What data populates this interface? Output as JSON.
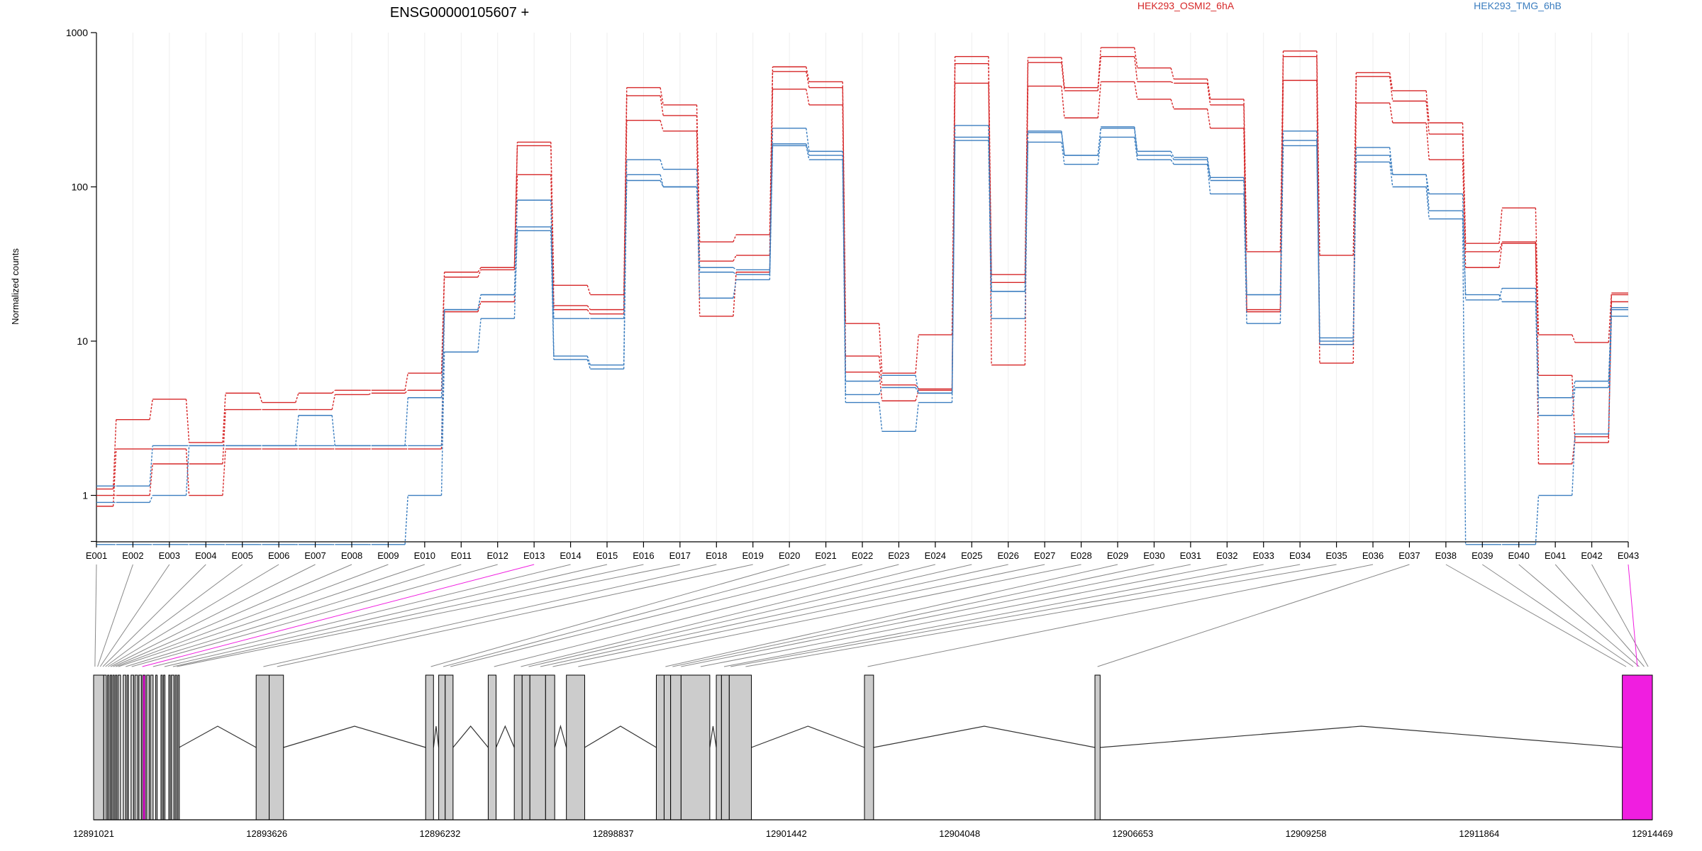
{
  "chart_data": {
    "type": "line",
    "title": "ENSG00000105607 +",
    "ylabel": "Normalized counts",
    "xlabel": "",
    "y_scale": "log",
    "ylim": [
      0.5,
      1000
    ],
    "y_ticks": [
      {
        "value": 1,
        "label": "1"
      },
      {
        "value": 10,
        "label": "10"
      },
      {
        "value": 100,
        "label": "100"
      },
      {
        "value": 1000,
        "label": "1000"
      }
    ],
    "grid": true,
    "legend": "top",
    "categories": [
      "E001",
      "E002",
      "E003",
      "E004",
      "E005",
      "E006",
      "E007",
      "E008",
      "E009",
      "E010",
      "E011",
      "E012",
      "E013",
      "E014",
      "E015",
      "E016",
      "E017",
      "E018",
      "E019",
      "E020",
      "E021",
      "E022",
      "E023",
      "E024",
      "E025",
      "E026",
      "E027",
      "E028",
      "E029",
      "E030",
      "E031",
      "E032",
      "E033",
      "E034",
      "E035",
      "E036",
      "E037",
      "E038",
      "E039",
      "E040",
      "E041",
      "E042",
      "E043"
    ],
    "groups": [
      {
        "name": "HEK293_OSMI2_6hA",
        "color": "#d62728"
      },
      {
        "name": "HEK293_TMG_6hB",
        "color": "#3a7dbf"
      }
    ],
    "series": [
      {
        "group": 0,
        "values": [
          1.1,
          3.1,
          4.2,
          2.2,
          4.6,
          4.0,
          4.6,
          4.8,
          4.8,
          6.2,
          28,
          30,
          195,
          23,
          20,
          440,
          340,
          44,
          49,
          600,
          480,
          13,
          6.2,
          11,
          700,
          27,
          690,
          440,
          800,
          590,
          500,
          370,
          38,
          760,
          36,
          550,
          420,
          260,
          43,
          73,
          11,
          9.8,
          20.5
        ]
      },
      {
        "group": 0,
        "values": [
          1.0,
          1.0,
          1.6,
          1.6,
          3.6,
          3.6,
          3.6,
          4.5,
          4.6,
          4.8,
          26,
          29,
          185,
          17,
          16,
          390,
          290,
          33,
          36,
          560,
          440,
          8.0,
          5.2,
          4.9,
          630,
          7.0,
          640,
          420,
          700,
          480,
          470,
          340,
          16,
          700,
          9.5,
          520,
          360,
          220,
          38,
          44,
          1.6,
          2.4,
          20.0
        ]
      },
      {
        "group": 0,
        "values": [
          0.85,
          2.0,
          2.0,
          1.0,
          2.0,
          2.0,
          2.0,
          2.0,
          2.0,
          2.0,
          15.5,
          18,
          120,
          16,
          15,
          270,
          230,
          14.5,
          28,
          430,
          340,
          6.3,
          4.1,
          4.8,
          470,
          24,
          450,
          280,
          480,
          370,
          320,
          240,
          15.5,
          490,
          7.2,
          350,
          260,
          150,
          30,
          43,
          6.0,
          2.2,
          18.0
        ]
      },
      {
        "group": 1,
        "values": [
          0.9,
          0.9,
          1.0,
          2.1,
          2.1,
          2.1,
          3.3,
          2.1,
          2.1,
          4.3,
          16,
          20,
          82,
          8.0,
          7.0,
          150,
          130,
          28,
          27,
          240,
          170,
          5.5,
          6.0,
          4.6,
          250,
          21,
          225,
          160,
          245,
          170,
          155,
          115,
          20,
          230,
          10.5,
          180,
          120,
          90,
          18.5,
          22,
          4.3,
          5.5,
          16.5
        ]
      },
      {
        "group": 1,
        "values": [
          1.15,
          1.15,
          2.1,
          2.1,
          2.1,
          2.1,
          2.1,
          2.1,
          2.1,
          2.1,
          16,
          20,
          55,
          14,
          14,
          110,
          100,
          30,
          29,
          190,
          160,
          4.5,
          5.0,
          4.6,
          210,
          21,
          230,
          160,
          240,
          160,
          150,
          110,
          20,
          200,
          10,
          160,
          120,
          70,
          20,
          18,
          3.3,
          5.0,
          16.0
        ]
      },
      {
        "group": 1,
        "values": [
          0.48,
          0.48,
          0.48,
          0.48,
          0.48,
          0.48,
          0.48,
          0.48,
          0.48,
          1.0,
          8.5,
          14,
          52,
          7.6,
          6.6,
          120,
          100,
          19,
          25,
          185,
          150,
          4.0,
          2.6,
          4.0,
          200,
          14,
          195,
          140,
          210,
          150,
          140,
          90,
          13,
          185,
          9.5,
          145,
          100,
          62,
          0.48,
          0.48,
          1.0,
          2.5,
          14.5
        ]
      }
    ],
    "series_style": [
      "dashed-step",
      "dashed-step",
      "dashed-step",
      "dashed-step",
      "dashed-step",
      "dashed-step"
    ],
    "gene_model": {
      "type": "exon-track",
      "xlim": [
        12891021,
        12914469
      ],
      "ticks": [
        {
          "value": 12891021,
          "label": "12891021"
        },
        {
          "value": 12893626,
          "label": "12893626"
        },
        {
          "value": 12896232,
          "label": "12896232"
        },
        {
          "value": 12898837,
          "label": "12898837"
        },
        {
          "value": 12901442,
          "label": "12901442"
        },
        {
          "value": 12904048,
          "label": "12904048"
        },
        {
          "value": 12906653,
          "label": "12906653"
        },
        {
          "value": 12909258,
          "label": "12909258"
        },
        {
          "value": 12911864,
          "label": "12911864"
        },
        {
          "value": 12914469,
          "label": "12914469"
        }
      ],
      "exon_color": "#cccccc",
      "highlight_color": "#f01ee0",
      "highlighted_exons": [
        "E013",
        "E043"
      ],
      "exons": [
        {
          "id": "E001",
          "start": 12891021,
          "end": 12891061
        },
        {
          "id": "E002",
          "start": 12891061,
          "end": 12891100
        },
        {
          "id": "E003",
          "start": 12891100,
          "end": 12891140
        },
        {
          "id": "E004",
          "start": 12891140,
          "end": 12891180
        },
        {
          "id": "E005",
          "start": 12891180,
          "end": 12891218
        },
        {
          "id": "E006",
          "start": 12891218,
          "end": 12891258
        },
        {
          "id": "E007",
          "start": 12891258,
          "end": 12891295
        },
        {
          "id": "E008",
          "start": 12891295,
          "end": 12891335
        },
        {
          "id": "E009",
          "start": 12891335,
          "end": 12891375
        },
        {
          "id": "E010",
          "start": 12891375,
          "end": 12891414
        },
        {
          "id": "E011",
          "start": 12891484,
          "end": 12891523
        },
        {
          "id": "E012",
          "start": 12891523,
          "end": 12891665
        },
        {
          "id": "E013",
          "start": 12891665,
          "end": 12891841
        },
        {
          "id": "E014",
          "start": 12891841,
          "end": 12891989
        },
        {
          "id": "E015",
          "start": 12892068,
          "end": 12892107
        },
        {
          "id": "E016",
          "start": 12892185,
          "end": 12892244
        },
        {
          "id": "E017",
          "start": 12892244,
          "end": 12892303
        },
        {
          "id": "E018",
          "start": 12893477,
          "end": 12893673
        },
        {
          "id": "E019",
          "start": 12893673,
          "end": 12893889
        },
        {
          "id": "E020",
          "start": 12896036,
          "end": 12896153
        },
        {
          "id": "E021",
          "start": 12896232,
          "end": 12896330
        },
        {
          "id": "E022",
          "start": 12896330,
          "end": 12896448
        },
        {
          "id": "E023",
          "start": 12896977,
          "end": 12897114
        },
        {
          "id": "E024",
          "start": 12897389,
          "end": 12897507
        },
        {
          "id": "E025",
          "start": 12897507,
          "end": 12897624
        },
        {
          "id": "E026",
          "start": 12897624,
          "end": 12897860
        },
        {
          "id": "E027",
          "start": 12897860,
          "end": 12897996
        },
        {
          "id": "E028",
          "start": 12898173,
          "end": 12898448
        },
        {
          "id": "E029",
          "start": 12899564,
          "end": 12899682
        },
        {
          "id": "E030",
          "start": 12899682,
          "end": 12899779
        },
        {
          "id": "E031",
          "start": 12899779,
          "end": 12899936
        },
        {
          "id": "E032",
          "start": 12899936,
          "end": 12900368
        },
        {
          "id": "E033",
          "start": 12900466,
          "end": 12900544
        },
        {
          "id": "E034",
          "start": 12900544,
          "end": 12900662
        },
        {
          "id": "E035",
          "start": 12900662,
          "end": 12900996
        },
        {
          "id": "E036",
          "start": 12902597,
          "end": 12902734
        },
        {
          "id": "E037",
          "start": 12906084,
          "end": 12906162
        },
        {
          "id": "E038",
          "start": 12914017,
          "end": 12914130
        },
        {
          "id": "E039",
          "start": 12914130,
          "end": 12914231
        },
        {
          "id": "E040",
          "start": 12914231,
          "end": 12914312
        },
        {
          "id": "E041",
          "start": 12914312,
          "end": 12914380
        },
        {
          "id": "E042",
          "start": 12914380,
          "end": 12914430
        },
        {
          "id": "E043",
          "start": 12914017,
          "end": 12914469
        }
      ],
      "track_blocks": [
        [
          12891021,
          12891173
        ],
        [
          12891173,
          12891212
        ],
        [
          12891231,
          12891251
        ],
        [
          12891271,
          12891290
        ],
        [
          12891310,
          12891329
        ],
        [
          12891349,
          12891368
        ],
        [
          12891388,
          12891427
        ],
        [
          12891466,
          12891506
        ],
        [
          12891525,
          12891545
        ],
        [
          12891584,
          12891623
        ],
        [
          12891642,
          12891682
        ],
        [
          12891701,
          12891741
        ],
        [
          12891760,
          12891799
        ],
        [
          12891819,
          12891858
        ],
        [
          12891877,
          12891916
        ],
        [
          12891955,
          12891975
        ],
        [
          12892034,
          12892054
        ],
        [
          12892073,
          12892093
        ],
        [
          12892152,
          12892172
        ],
        [
          12892191,
          12892230
        ],
        [
          12892249,
          12892269
        ],
        [
          12892289,
          12892308
        ],
        [
          12893466,
          12893662
        ],
        [
          12893662,
          12893877
        ],
        [
          12896016,
          12896134
        ],
        [
          12896212,
          12896310
        ],
        [
          12896310,
          12896428
        ],
        [
          12896957,
          12897075
        ],
        [
          12897349,
          12897467
        ],
        [
          12897467,
          12897584
        ],
        [
          12897584,
          12897820
        ],
        [
          12897820,
          12897957
        ],
        [
          12898133,
          12898408
        ],
        [
          12899486,
          12899603
        ],
        [
          12899603,
          12899701
        ],
        [
          12899701,
          12899858
        ],
        [
          12899858,
          12900290
        ],
        [
          12900388,
          12900466
        ],
        [
          12900466,
          12900583
        ],
        [
          12900583,
          12900916
        ],
        [
          12902617,
          12902754
        ],
        [
          12906084,
          12906162
        ],
        [
          12914017,
          12914469
        ]
      ]
    }
  },
  "legend": [
    {
      "label": "HEK293_OSMI2_6hA",
      "color": "#d62728"
    },
    {
      "label": "HEK293_TMG_6hB",
      "color": "#3a7dbf"
    }
  ]
}
